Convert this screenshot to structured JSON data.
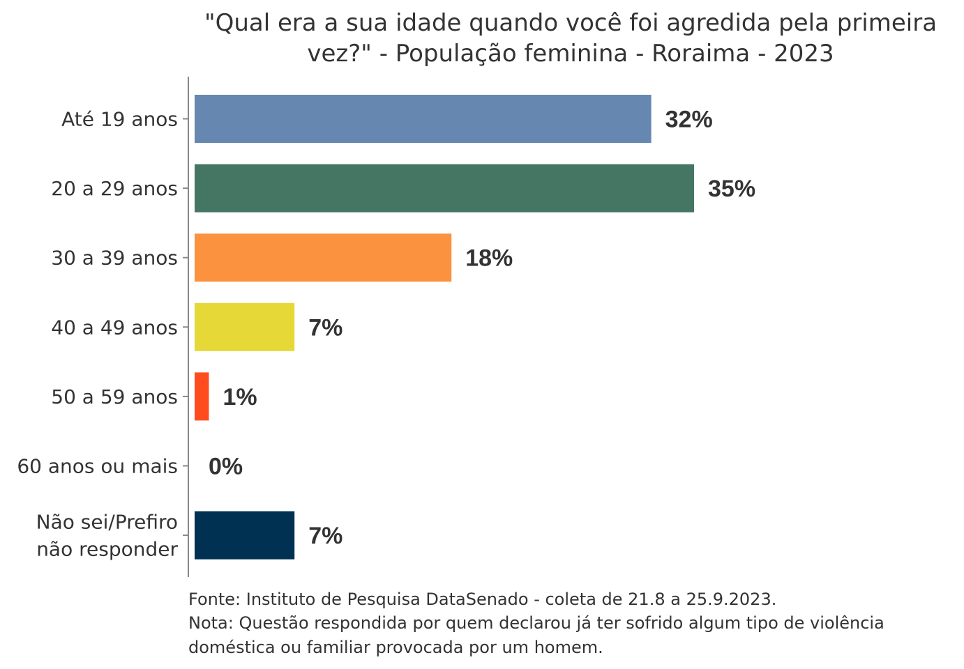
{
  "chart_data": {
    "type": "bar",
    "orientation": "horizontal",
    "title": [
      "\"Qual era a sua idade quando você foi agredida pela primeira",
      "vez?\" - População feminina - Roraima - 2023"
    ],
    "categories": [
      [
        "Até 19 anos"
      ],
      [
        "20 a 29 anos"
      ],
      [
        "30 a 39 anos"
      ],
      [
        "40 a 49 anos"
      ],
      [
        "50 a 59 anos"
      ],
      [
        "60 anos ou mais"
      ],
      [
        "Não sei/Prefiro",
        "não responder"
      ]
    ],
    "values": [
      32,
      35,
      18,
      7,
      1,
      0,
      7
    ],
    "value_labels": [
      "32%",
      "35%",
      "18%",
      "7%",
      "1%",
      "0%",
      "7%"
    ],
    "colors": [
      "#6688B0",
      "#457663",
      "#FA923F",
      "#E5D837",
      "#FF4C1F",
      "#777777",
      "#003152"
    ],
    "xlim": [
      0,
      35
    ],
    "grid": false,
    "footnote": [
      "Fonte: Instituto de Pesquisa DataSenado - coleta de 21.8 a 25.9.2023.",
      "Nota: Questão respondida por quem declarou já ter sofrido algum tipo de violência",
      "doméstica ou familiar provocada por um homem."
    ]
  }
}
